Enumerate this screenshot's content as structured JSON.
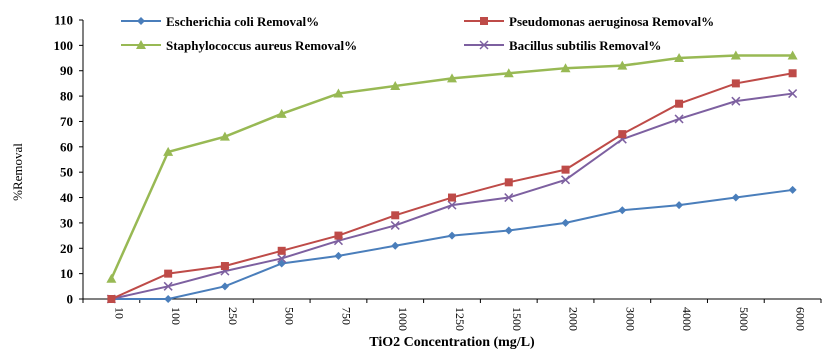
{
  "chart_data": {
    "type": "line",
    "xlabel": "TiO2 Concentration (mg/L)",
    "ylabel": "%Removal",
    "ylim": [
      0,
      110
    ],
    "yticks": [
      0,
      10,
      20,
      30,
      40,
      50,
      60,
      70,
      80,
      90,
      100,
      110
    ],
    "grid": false,
    "legend_position": "top",
    "categories": [
      "10",
      "100",
      "250",
      "500",
      "750",
      "1000",
      "1250",
      "1500",
      "2000",
      "3000",
      "4000",
      "5000",
      "6000"
    ],
    "series": [
      {
        "name": "Escherichia coli Removal%",
        "color": "#4A7EBB",
        "marker": "diamond",
        "values": [
          0,
          0,
          5,
          14,
          17,
          21,
          25,
          27,
          30,
          35,
          37,
          40,
          43
        ]
      },
      {
        "name": "Pseudomonas aeruginosa Removal%",
        "color": "#BE4B48",
        "marker": "square",
        "values": [
          0,
          10,
          13,
          19,
          25,
          33,
          40,
          46,
          51,
          65,
          77,
          85,
          89
        ]
      },
      {
        "name": "Staphylococcus aureus Removal%",
        "color": "#98B954",
        "marker": "triangle",
        "values": [
          8,
          58,
          64,
          73,
          81,
          84,
          87,
          89,
          91,
          92,
          95,
          96,
          96
        ]
      },
      {
        "name": "Bacillus subtilis Removal%",
        "color": "#7D60A0",
        "marker": "x",
        "values": [
          0,
          5,
          11,
          16,
          23,
          29,
          37,
          40,
          47,
          63,
          71,
          78,
          81
        ]
      }
    ]
  }
}
